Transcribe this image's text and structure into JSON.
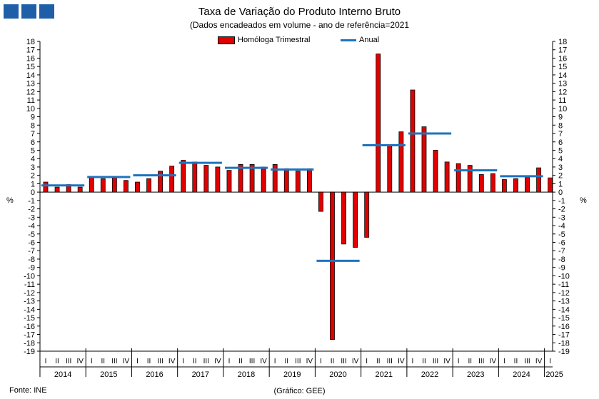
{
  "header": {
    "title": "Taxa de Variação do Produto Interno Bruto",
    "subtitle": "(Dados encadeados em volume - ano de referência=2021"
  },
  "legend": {
    "bar_label": "Homóloga Trimestral",
    "line_label": "Anual"
  },
  "axis_unit_left": "%",
  "axis_unit_right": "%",
  "footer": {
    "source": "Fonte: INE",
    "credit": "(Gráfico: GEE)"
  },
  "colors": {
    "bar": "#e00000",
    "line": "#1e73be",
    "logo": "#1f5fa8"
  },
  "chart_data": {
    "type": "bar",
    "title": "Taxa de Variação do Produto Interno Bruto",
    "subtitle": "(Dados encadeados em volume - ano de referência=2021",
    "ylabel": "%",
    "ylim": [
      -19,
      18
    ],
    "ytick_step": 1,
    "quarter_labels": [
      "I",
      "II",
      "III",
      "IV"
    ],
    "years": [
      "2014",
      "2015",
      "2016",
      "2017",
      "2018",
      "2019",
      "2020",
      "2021",
      "2022",
      "2023",
      "2024",
      "2025"
    ],
    "series": [
      {
        "name": "Homóloga Trimestral",
        "kind": "bar",
        "values": [
          1.2,
          0.6,
          0.9,
          0.6,
          1.8,
          1.6,
          1.7,
          1.4,
          1.2,
          1.6,
          2.5,
          3.1,
          3.8,
          3.6,
          3.2,
          3.0,
          2.6,
          3.3,
          3.3,
          3.0,
          3.3,
          2.8,
          2.5,
          2.8,
          -2.3,
          -17.6,
          -6.2,
          -6.6,
          -5.4,
          16.5,
          5.5,
          7.2,
          12.2,
          7.8,
          5.0,
          3.6,
          3.4,
          3.2,
          2.1,
          2.2,
          1.5,
          1.6,
          1.9,
          2.9,
          1.7
        ]
      },
      {
        "name": "Anual",
        "kind": "line",
        "values": [
          0.8,
          1.8,
          2.0,
          3.5,
          2.9,
          2.7,
          -8.2,
          5.6,
          7.0,
          2.6,
          1.9
        ]
      }
    ]
  }
}
